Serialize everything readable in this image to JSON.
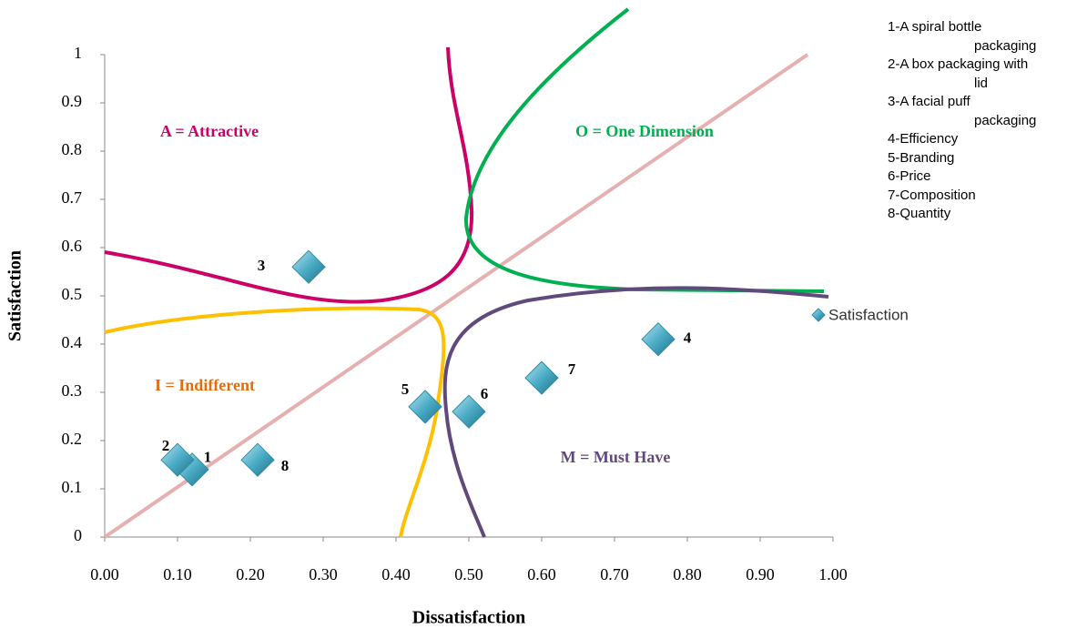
{
  "chart_data": {
    "type": "scatter",
    "x_label": "Dissatisfaction",
    "y_label": "Satisfaction",
    "xlim": [
      0,
      1
    ],
    "ylim": [
      0,
      1
    ],
    "xticks": [
      {
        "value": 0,
        "label": "0.00"
      },
      {
        "value": 0.1,
        "label": "0.10"
      },
      {
        "value": 0.2,
        "label": "0.20"
      },
      {
        "value": 0.3,
        "label": "0.30"
      },
      {
        "value": 0.4,
        "label": "0.40"
      },
      {
        "value": 0.5,
        "label": "0.50"
      },
      {
        "value": 0.6,
        "label": "0.60"
      },
      {
        "value": 0.7,
        "label": "0.70"
      },
      {
        "value": 0.8,
        "label": "0.80"
      },
      {
        "value": 0.9,
        "label": "0.90"
      },
      {
        "value": 1,
        "label": "1.00"
      }
    ],
    "yticks": [
      0,
      0.1,
      0.2,
      0.3,
      0.4,
      0.5,
      0.6,
      0.7,
      0.8,
      0.9,
      1
    ],
    "series": [
      {
        "name": "Satisfaction",
        "color": "#4bacc6",
        "x": [
          0.12,
          0.1,
          0.28,
          0.76,
          0.44,
          0.5,
          0.6,
          0.21
        ],
        "values": [
          0.14,
          0.16,
          0.56,
          0.41,
          0.27,
          0.26,
          0.33,
          0.16
        ],
        "point_labels": [
          "1",
          "2",
          "3",
          "4",
          "5",
          "6",
          "7",
          "8"
        ]
      }
    ],
    "annotations": [
      {
        "text": "A = Attractive",
        "color": "#cc0066"
      },
      {
        "text": "O = One Dimension",
        "color": "#00b050"
      },
      {
        "text": "I = Indifferent",
        "color": "#e46c0a"
      },
      {
        "text": "M = Must Have",
        "color": "#604a7b"
      }
    ],
    "notes": [
      "1-A spiral bottle packaging",
      "2-A box packaging with lid",
      "3-A facial puff packaging",
      "4-Efficiency",
      "5-Branding",
      "6-Price",
      "7-Composition",
      "8-Quantity"
    ]
  }
}
